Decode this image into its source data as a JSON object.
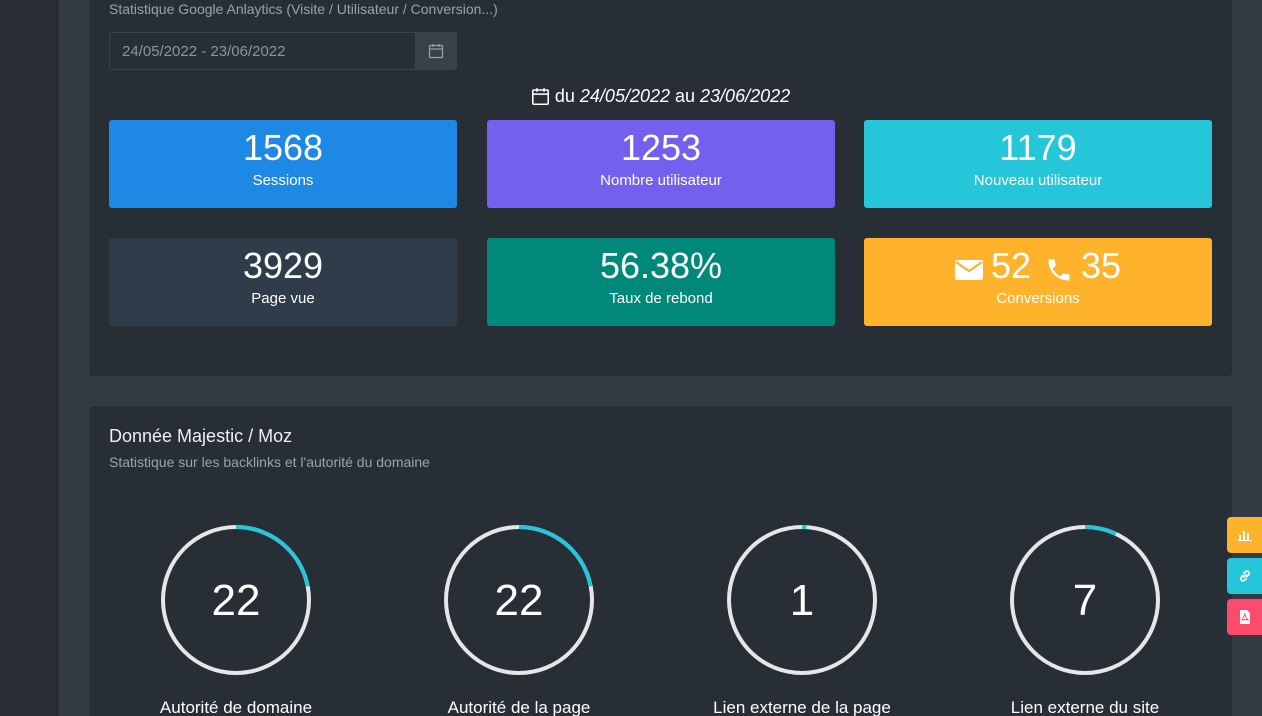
{
  "analytics": {
    "subtitle": "Statistique Google Anlaytics (Visite / Utilisateur / Conversion...)",
    "date_range_value": "24/05/2022 - 23/06/2022",
    "range_prefix": "du",
    "range_start": "24/05/2022",
    "range_mid": "au",
    "range_end": "23/06/2022",
    "stats": [
      {
        "value": "1568",
        "label": "Sessions",
        "color": "#1e88e5"
      },
      {
        "value": "1253",
        "label": "Nombre utilisateur",
        "color": "#7460ee"
      },
      {
        "value": "1179",
        "label": "Nouveau utilisateur",
        "color": "#26c6da"
      },
      {
        "value": "3929",
        "label": "Page vue",
        "color": "#2f3d4a"
      },
      {
        "value": "56.38%",
        "label": "Taux de rebond",
        "color": "#00897b"
      }
    ],
    "conversions": {
      "email_count": "52",
      "phone_count": "35",
      "label": "Conversions",
      "color": "#ffb22b"
    }
  },
  "moz": {
    "title": "Donnée Majestic / Moz",
    "subtitle": "Statistique sur les backlinks et l'autorité du domaine",
    "gauges": [
      {
        "value": "22",
        "label": "Autorité de domaine",
        "fraction": 0.22
      },
      {
        "value": "22",
        "label": "Autorité de la page",
        "fraction": 0.22
      },
      {
        "value": "1",
        "label": "Lien externe de la page",
        "fraction": 0.01
      },
      {
        "value": "7",
        "label": "Lien externe du site",
        "fraction": 0.07
      }
    ],
    "gauge_track_color": "#e6e6e6",
    "gauge_fill_color": "#26c6da"
  },
  "floating_buttons": [
    {
      "icon": "bar-chart-icon",
      "color": "#ffb22b"
    },
    {
      "icon": "link-icon",
      "color": "#26c6da"
    },
    {
      "icon": "pdf-file-icon",
      "color": "#fc4b6c"
    }
  ]
}
